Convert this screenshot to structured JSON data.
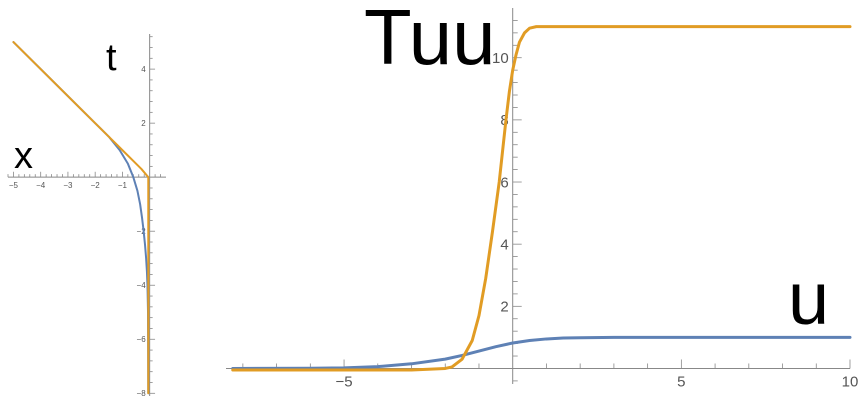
{
  "colors": {
    "blue": "#5E81B5",
    "orange": "#E19C24",
    "axis": "#888888",
    "tick": "#555555"
  },
  "chart_data": [
    {
      "type": "line",
      "xlabel": "x",
      "ylabel": "t",
      "xlim": [
        -5.2,
        0.6
      ],
      "ylim": [
        -8.1,
        5.3
      ],
      "xticks": [
        -5,
        -4,
        -3,
        -2,
        -1
      ],
      "xtick_labels": [
        "−5",
        "−4",
        "−3",
        "−2",
        "−1"
      ],
      "yticks": [
        -8,
        -6,
        -4,
        -2,
        2,
        4
      ],
      "ytick_labels": [
        "−8",
        "−6",
        "−4",
        "−2",
        "2",
        "4"
      ],
      "series": [
        {
          "color": "#5E81B5",
          "x": [
            -5,
            -3,
            -2,
            -1.5,
            -1.1,
            -0.8,
            -0.6,
            -0.45,
            -0.35,
            -0.28,
            -0.22,
            -0.17,
            -0.13,
            -0.1,
            -0.08,
            -0.06,
            -0.05
          ],
          "y": [
            5,
            3,
            2,
            1.5,
            1.0,
            0.5,
            0.0,
            -0.5,
            -1.0,
            -1.5,
            -2.0,
            -2.5,
            -3.0,
            -3.5,
            -4.0,
            -5.0,
            -8.0
          ]
        },
        {
          "color": "#E19C24",
          "x": [
            -5,
            -2,
            -1.8,
            -1.5,
            -1.2,
            -0.9,
            -0.6,
            -0.3,
            -0.05,
            -0.05,
            -0.05
          ],
          "y": [
            5,
            2,
            1.8,
            1.5,
            1.2,
            0.9,
            0.6,
            0.3,
            0.0,
            -4.0,
            -8.0
          ]
        }
      ],
      "grid": false
    },
    {
      "type": "line",
      "title": "Tuu",
      "xlabel": "u",
      "xlim": [
        -8.5,
        10
      ],
      "ylim": [
        -0.5,
        11.6
      ],
      "xticks": [
        -5,
        5,
        10
      ],
      "xtick_labels": [
        "−5",
        "5",
        "10"
      ],
      "yticks": [
        2,
        4,
        6,
        8,
        10
      ],
      "ytick_labels": [
        "2",
        "4",
        "6",
        "8",
        "10"
      ],
      "series": [
        {
          "color": "#5E81B5",
          "x": [
            -8.3,
            -6,
            -5,
            -4,
            -3,
            -2,
            -1.5,
            -1,
            -0.5,
            0,
            0.5,
            1,
            1.5,
            2,
            3,
            4,
            5,
            7,
            10
          ],
          "y": [
            0.0,
            0.005,
            0.02,
            0.06,
            0.15,
            0.3,
            0.42,
            0.56,
            0.7,
            0.82,
            0.9,
            0.95,
            0.98,
            0.99,
            1.0,
            1.0,
            1.0,
            1.0,
            1.0
          ]
        },
        {
          "color": "#E19C24",
          "x": [
            -8.3,
            -3,
            -2,
            -1.8,
            -1.5,
            -1.2,
            -1.0,
            -0.8,
            -0.6,
            -0.4,
            -0.3,
            -0.2,
            -0.1,
            0.0,
            0.1,
            0.2,
            0.35,
            0.5,
            0.7,
            1.0,
            10
          ],
          "y": [
            -0.05,
            -0.05,
            0.0,
            0.05,
            0.3,
            0.9,
            1.7,
            2.9,
            4.4,
            6.0,
            7.0,
            8.0,
            8.9,
            9.6,
            10.1,
            10.5,
            10.8,
            10.95,
            11.0,
            11.0,
            11.0
          ]
        }
      ],
      "grid": false
    }
  ]
}
